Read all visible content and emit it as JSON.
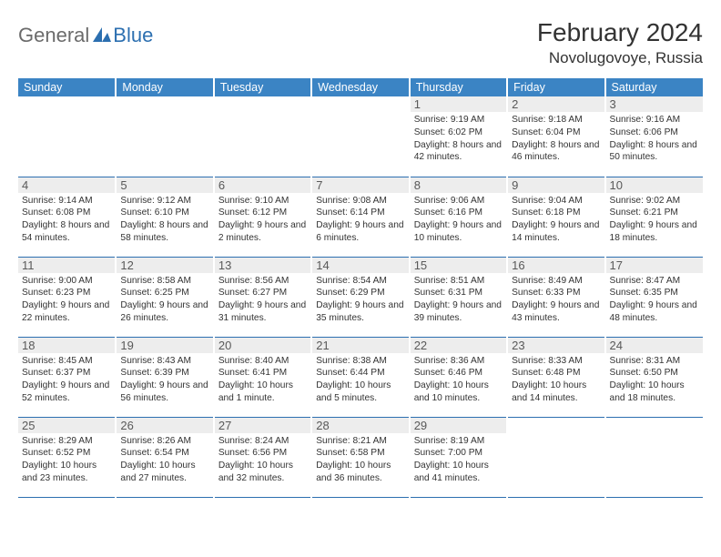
{
  "logo": {
    "text1": "General",
    "text2": "Blue"
  },
  "title": "February 2024",
  "location": "Novolugovoye, Russia",
  "colors": {
    "header_bg": "#3b84c4",
    "header_text": "#ffffff",
    "border": "#2c6fb0",
    "daynum_bg": "#ededed",
    "daynum_text": "#595959",
    "body_text": "#333333",
    "logo_gray": "#6b6b6b",
    "logo_blue": "#2c6fb0",
    "page_bg": "#ffffff"
  },
  "weekdays": [
    "Sunday",
    "Monday",
    "Tuesday",
    "Wednesday",
    "Thursday",
    "Friday",
    "Saturday"
  ],
  "rows": [
    [
      {
        "num": "",
        "sunrise": "",
        "sunset": "",
        "daylight": ""
      },
      {
        "num": "",
        "sunrise": "",
        "sunset": "",
        "daylight": ""
      },
      {
        "num": "",
        "sunrise": "",
        "sunset": "",
        "daylight": ""
      },
      {
        "num": "",
        "sunrise": "",
        "sunset": "",
        "daylight": ""
      },
      {
        "num": "1",
        "sunrise": "Sunrise: 9:19 AM",
        "sunset": "Sunset: 6:02 PM",
        "daylight": "Daylight: 8 hours and 42 minutes."
      },
      {
        "num": "2",
        "sunrise": "Sunrise: 9:18 AM",
        "sunset": "Sunset: 6:04 PM",
        "daylight": "Daylight: 8 hours and 46 minutes."
      },
      {
        "num": "3",
        "sunrise": "Sunrise: 9:16 AM",
        "sunset": "Sunset: 6:06 PM",
        "daylight": "Daylight: 8 hours and 50 minutes."
      }
    ],
    [
      {
        "num": "4",
        "sunrise": "Sunrise: 9:14 AM",
        "sunset": "Sunset: 6:08 PM",
        "daylight": "Daylight: 8 hours and 54 minutes."
      },
      {
        "num": "5",
        "sunrise": "Sunrise: 9:12 AM",
        "sunset": "Sunset: 6:10 PM",
        "daylight": "Daylight: 8 hours and 58 minutes."
      },
      {
        "num": "6",
        "sunrise": "Sunrise: 9:10 AM",
        "sunset": "Sunset: 6:12 PM",
        "daylight": "Daylight: 9 hours and 2 minutes."
      },
      {
        "num": "7",
        "sunrise": "Sunrise: 9:08 AM",
        "sunset": "Sunset: 6:14 PM",
        "daylight": "Daylight: 9 hours and 6 minutes."
      },
      {
        "num": "8",
        "sunrise": "Sunrise: 9:06 AM",
        "sunset": "Sunset: 6:16 PM",
        "daylight": "Daylight: 9 hours and 10 minutes."
      },
      {
        "num": "9",
        "sunrise": "Sunrise: 9:04 AM",
        "sunset": "Sunset: 6:18 PM",
        "daylight": "Daylight: 9 hours and 14 minutes."
      },
      {
        "num": "10",
        "sunrise": "Sunrise: 9:02 AM",
        "sunset": "Sunset: 6:21 PM",
        "daylight": "Daylight: 9 hours and 18 minutes."
      }
    ],
    [
      {
        "num": "11",
        "sunrise": "Sunrise: 9:00 AM",
        "sunset": "Sunset: 6:23 PM",
        "daylight": "Daylight: 9 hours and 22 minutes."
      },
      {
        "num": "12",
        "sunrise": "Sunrise: 8:58 AM",
        "sunset": "Sunset: 6:25 PM",
        "daylight": "Daylight: 9 hours and 26 minutes."
      },
      {
        "num": "13",
        "sunrise": "Sunrise: 8:56 AM",
        "sunset": "Sunset: 6:27 PM",
        "daylight": "Daylight: 9 hours and 31 minutes."
      },
      {
        "num": "14",
        "sunrise": "Sunrise: 8:54 AM",
        "sunset": "Sunset: 6:29 PM",
        "daylight": "Daylight: 9 hours and 35 minutes."
      },
      {
        "num": "15",
        "sunrise": "Sunrise: 8:51 AM",
        "sunset": "Sunset: 6:31 PM",
        "daylight": "Daylight: 9 hours and 39 minutes."
      },
      {
        "num": "16",
        "sunrise": "Sunrise: 8:49 AM",
        "sunset": "Sunset: 6:33 PM",
        "daylight": "Daylight: 9 hours and 43 minutes."
      },
      {
        "num": "17",
        "sunrise": "Sunrise: 8:47 AM",
        "sunset": "Sunset: 6:35 PM",
        "daylight": "Daylight: 9 hours and 48 minutes."
      }
    ],
    [
      {
        "num": "18",
        "sunrise": "Sunrise: 8:45 AM",
        "sunset": "Sunset: 6:37 PM",
        "daylight": "Daylight: 9 hours and 52 minutes."
      },
      {
        "num": "19",
        "sunrise": "Sunrise: 8:43 AM",
        "sunset": "Sunset: 6:39 PM",
        "daylight": "Daylight: 9 hours and 56 minutes."
      },
      {
        "num": "20",
        "sunrise": "Sunrise: 8:40 AM",
        "sunset": "Sunset: 6:41 PM",
        "daylight": "Daylight: 10 hours and 1 minute."
      },
      {
        "num": "21",
        "sunrise": "Sunrise: 8:38 AM",
        "sunset": "Sunset: 6:44 PM",
        "daylight": "Daylight: 10 hours and 5 minutes."
      },
      {
        "num": "22",
        "sunrise": "Sunrise: 8:36 AM",
        "sunset": "Sunset: 6:46 PM",
        "daylight": "Daylight: 10 hours and 10 minutes."
      },
      {
        "num": "23",
        "sunrise": "Sunrise: 8:33 AM",
        "sunset": "Sunset: 6:48 PM",
        "daylight": "Daylight: 10 hours and 14 minutes."
      },
      {
        "num": "24",
        "sunrise": "Sunrise: 8:31 AM",
        "sunset": "Sunset: 6:50 PM",
        "daylight": "Daylight: 10 hours and 18 minutes."
      }
    ],
    [
      {
        "num": "25",
        "sunrise": "Sunrise: 8:29 AM",
        "sunset": "Sunset: 6:52 PM",
        "daylight": "Daylight: 10 hours and 23 minutes."
      },
      {
        "num": "26",
        "sunrise": "Sunrise: 8:26 AM",
        "sunset": "Sunset: 6:54 PM",
        "daylight": "Daylight: 10 hours and 27 minutes."
      },
      {
        "num": "27",
        "sunrise": "Sunrise: 8:24 AM",
        "sunset": "Sunset: 6:56 PM",
        "daylight": "Daylight: 10 hours and 32 minutes."
      },
      {
        "num": "28",
        "sunrise": "Sunrise: 8:21 AM",
        "sunset": "Sunset: 6:58 PM",
        "daylight": "Daylight: 10 hours and 36 minutes."
      },
      {
        "num": "29",
        "sunrise": "Sunrise: 8:19 AM",
        "sunset": "Sunset: 7:00 PM",
        "daylight": "Daylight: 10 hours and 41 minutes."
      },
      {
        "num": "",
        "sunrise": "",
        "sunset": "",
        "daylight": ""
      },
      {
        "num": "",
        "sunrise": "",
        "sunset": "",
        "daylight": ""
      }
    ]
  ]
}
